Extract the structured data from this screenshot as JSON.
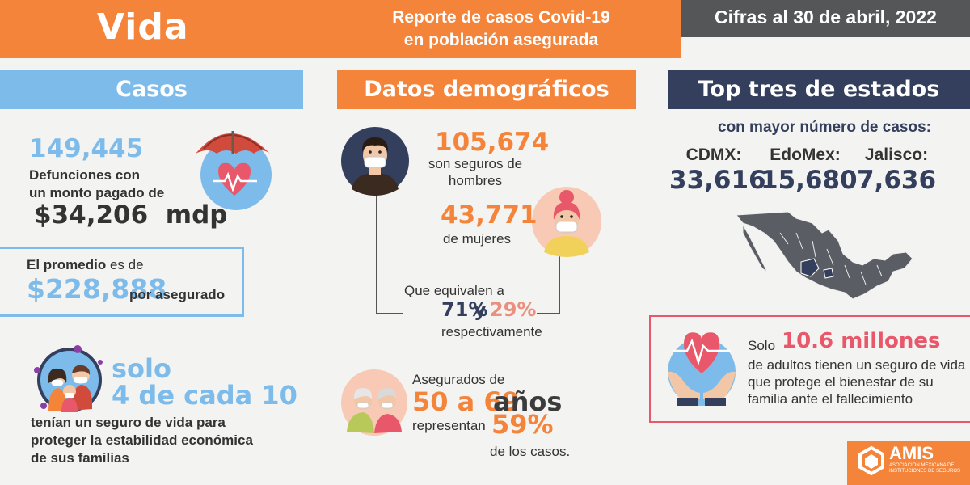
{
  "header": {
    "section": "Vida",
    "report_line1": "Reporte de casos Covid-19",
    "report_line2": "en población asegurada",
    "date": "Cifras al 30 de abril, 2022"
  },
  "casos": {
    "title": "Casos",
    "deaths": "149,445",
    "deaths_desc_line1": "Defunciones con",
    "deaths_desc_line2": "un monto pagado de",
    "amount_paid": "$34,206  mdp",
    "avg_label_strong": "El promedio",
    "avg_label_rest": " es de",
    "avg_amount": "$228,888",
    "avg_suffix": "por asegurado",
    "solo": "solo",
    "ratio": "4 de cada 10",
    "family_desc": "tenían un seguro de vida para proteger la estabilidad económica de sus familias"
  },
  "demografia": {
    "title": "Datos demográficos",
    "men_count": "105,674",
    "men_desc_line1": "son seguros de",
    "men_desc_line2": "hombres",
    "women_count": "43,771",
    "women_desc": "de mujeres",
    "equiv_label": "Que equivalen a",
    "pct_men": "71%",
    "pct_and": "y",
    "pct_women": "29%",
    "respectively": "respectivamente",
    "age_label": "Asegurados de",
    "age_range": "50 a 69",
    "age_unit": "años",
    "represent": "representan",
    "share": "59%",
    "of_cases": "de los casos."
  },
  "top_estados": {
    "title": "Top tres de estados",
    "subtitle": "con mayor número de casos:",
    "states": [
      {
        "name": "CDMX:",
        "value": "33,616"
      },
      {
        "name": "EdoMex:",
        "value": "15,680"
      },
      {
        "name": "Jalisco:",
        "value": "7,636"
      }
    ],
    "callout_solo": "Solo",
    "callout_millions": "10.6 millones",
    "callout_desc": "de adultos tienen un seguro de vida que protege el bienestar de su familia ante el fallecimiento"
  },
  "logo": {
    "name": "AMIS",
    "full_name": "Asociación Mexicana de Instituciones de Seguros"
  },
  "colors": {
    "orange": "#f5843b",
    "light_blue": "#7dbbea",
    "navy": "#343f5e",
    "gray": "#555657",
    "red": "#e8586a",
    "salmon": "#eb8f7e"
  }
}
